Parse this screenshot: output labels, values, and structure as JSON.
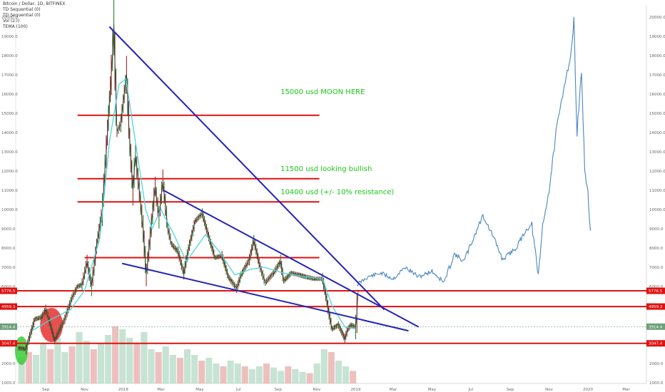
{
  "header": {
    "title": "Bitcoin / Dollar, 1D, BITFINEX",
    "indicators": [
      "TD Sequential (0)",
      "TD Sequential (0)",
      "Vol (20)",
      "TEMA (100)"
    ]
  },
  "chart_data": {
    "type": "line",
    "title": "Bitcoin / Dollar, 1D, BITFINEX",
    "xlabel": "",
    "ylabel": "",
    "ylim": [
      0,
      20500
    ],
    "y_ticks": [
      1000,
      2000,
      3000,
      4000,
      5000,
      6000,
      7000,
      8000,
      9000,
      10000,
      11000,
      12000,
      13000,
      14000,
      15000,
      16000,
      17000,
      18000,
      19000,
      20000
    ],
    "y_tick_labels": [
      "1000.0",
      "2000.0",
      "3000.0",
      "4000.0",
      "5000.0",
      "6000.0",
      "7000.0",
      "8000.0",
      "9000.0",
      "10000.0",
      "11000.0",
      "12000.0",
      "13000.0",
      "14000.0",
      "15000.0",
      "16000.0",
      "17000.0",
      "18000.0",
      "19000.0",
      "20000.0"
    ],
    "x_ticks": [
      {
        "label": "Sep",
        "date": "2017-09-01"
      },
      {
        "label": "Nov",
        "date": "2017-11-01"
      },
      {
        "label": "2018",
        "date": "2018-01-01"
      },
      {
        "label": "Mar",
        "date": "2018-03-01"
      },
      {
        "label": "May",
        "date": "2018-05-01"
      },
      {
        "label": "Jul",
        "date": "2018-07-01"
      },
      {
        "label": "Sep",
        "date": "2018-09-01"
      },
      {
        "label": "Nov",
        "date": "2018-11-01"
      },
      {
        "label": "2019",
        "date": "2019-01-01"
      },
      {
        "label": "Mar",
        "date": "2019-03-01"
      },
      {
        "label": "May",
        "date": "2019-05-01"
      },
      {
        "label": "Jul",
        "date": "2019-07-01"
      },
      {
        "label": "Sep",
        "date": "2019-09-01"
      },
      {
        "label": "Nov",
        "date": "2019-11-01"
      },
      {
        "label": "2020",
        "date": "2020-01-01"
      },
      {
        "label": "Mar",
        "date": "2020-03-01"
      }
    ],
    "xlim": [
      "2017-07-18",
      "2020-04-02"
    ],
    "grid": false,
    "series": [
      {
        "kind": "price",
        "color": "#333333",
        "points": [
          [
            "2017-07-20",
            2800
          ],
          [
            "2017-08-01",
            2750
          ],
          [
            "2017-08-05",
            3200
          ],
          [
            "2017-08-15",
            4300
          ],
          [
            "2017-08-25",
            4400
          ],
          [
            "2017-09-01",
            4800
          ],
          [
            "2017-09-05",
            4400
          ],
          [
            "2017-09-15",
            3200
          ],
          [
            "2017-09-22",
            3700
          ],
          [
            "2017-10-01",
            4300
          ],
          [
            "2017-10-12",
            5400
          ],
          [
            "2017-10-21",
            6000
          ],
          [
            "2017-10-28",
            6100
          ],
          [
            "2017-11-05",
            7300
          ],
          [
            "2017-11-12",
            6000
          ],
          [
            "2017-11-20",
            8100
          ],
          [
            "2017-11-29",
            10000
          ],
          [
            "2017-12-07",
            14000
          ],
          [
            "2017-12-10",
            15500
          ],
          [
            "2017-12-13",
            17000
          ],
          [
            "2017-12-17",
            19500
          ],
          [
            "2017-12-22",
            14000
          ],
          [
            "2017-12-28",
            14500
          ],
          [
            "2018-01-06",
            17000
          ],
          [
            "2018-01-11",
            13500
          ],
          [
            "2018-01-16",
            11000
          ],
          [
            "2018-01-20",
            12800
          ],
          [
            "2018-01-26",
            11000
          ],
          [
            "2018-02-01",
            9000
          ],
          [
            "2018-02-06",
            6600
          ],
          [
            "2018-02-12",
            8500
          ],
          [
            "2018-02-20",
            11200
          ],
          [
            "2018-02-26",
            9600
          ],
          [
            "2018-03-04",
            11500
          ],
          [
            "2018-03-12",
            9000
          ],
          [
            "2018-03-18",
            8200
          ],
          [
            "2018-03-28",
            7800
          ],
          [
            "2018-04-06",
            6700
          ],
          [
            "2018-04-13",
            7900
          ],
          [
            "2018-04-24",
            9400
          ],
          [
            "2018-05-05",
            9800
          ],
          [
            "2018-05-15",
            8600
          ],
          [
            "2018-05-25",
            7500
          ],
          [
            "2018-06-05",
            7600
          ],
          [
            "2018-06-15",
            6500
          ],
          [
            "2018-06-28",
            5900
          ],
          [
            "2018-07-05",
            6600
          ],
          [
            "2018-07-18",
            7400
          ],
          [
            "2018-07-25",
            8400
          ],
          [
            "2018-08-04",
            7000
          ],
          [
            "2018-08-12",
            6200
          ],
          [
            "2018-08-25",
            6700
          ],
          [
            "2018-09-05",
            7300
          ],
          [
            "2018-09-10",
            6300
          ],
          [
            "2018-09-22",
            6700
          ],
          [
            "2018-10-05",
            6600
          ],
          [
            "2018-10-15",
            6500
          ],
          [
            "2018-10-28",
            6400
          ],
          [
            "2018-11-10",
            6400
          ],
          [
            "2018-11-15",
            5600
          ],
          [
            "2018-11-20",
            4600
          ],
          [
            "2018-11-25",
            3800
          ],
          [
            "2018-12-05",
            4000
          ],
          [
            "2018-12-15",
            3300
          ],
          [
            "2018-12-20",
            3800
          ],
          [
            "2018-12-25",
            4000
          ],
          [
            "2019-01-01",
            3900
          ],
          [
            "2019-01-03",
            4600
          ],
          [
            "2019-01-05",
            5800
          ]
        ]
      },
      {
        "kind": "tema",
        "name": "TEMA (100)",
        "color": "#4fd4dc",
        "points": [
          [
            "2017-08-10",
            3700
          ],
          [
            "2017-09-10",
            4300
          ],
          [
            "2017-10-10",
            4800
          ],
          [
            "2017-11-01",
            5800
          ],
          [
            "2017-11-25",
            8500
          ],
          [
            "2017-12-10",
            13500
          ],
          [
            "2017-12-25",
            16500
          ],
          [
            "2018-01-05",
            16800
          ],
          [
            "2018-01-20",
            13500
          ],
          [
            "2018-02-05",
            10000
          ],
          [
            "2018-02-15",
            9000
          ],
          [
            "2018-03-01",
            10000
          ],
          [
            "2018-03-20",
            8800
          ],
          [
            "2018-04-10",
            7300
          ],
          [
            "2018-04-25",
            8000
          ],
          [
            "2018-05-10",
            8700
          ],
          [
            "2018-06-01",
            7800
          ],
          [
            "2018-06-25",
            6600
          ],
          [
            "2018-07-20",
            6900
          ],
          [
            "2018-08-10",
            7000
          ],
          [
            "2018-09-10",
            6700
          ],
          [
            "2018-10-15",
            6500
          ],
          [
            "2018-11-10",
            6400
          ],
          [
            "2018-11-25",
            5000
          ],
          [
            "2018-12-15",
            3900
          ],
          [
            "2019-01-01",
            3800
          ]
        ]
      },
      {
        "kind": "projection",
        "color": "#4a86c0",
        "points": [
          [
            "2019-01-03",
            6100
          ],
          [
            "2019-01-20",
            6500
          ],
          [
            "2019-02-10",
            6700
          ],
          [
            "2019-03-01",
            6400
          ],
          [
            "2019-03-20",
            7000
          ],
          [
            "2019-04-10",
            6500
          ],
          [
            "2019-05-01",
            6800
          ],
          [
            "2019-05-20",
            6200
          ],
          [
            "2019-06-05",
            7700
          ],
          [
            "2019-06-20",
            7300
          ],
          [
            "2019-07-05",
            8500
          ],
          [
            "2019-07-20",
            9700
          ],
          [
            "2019-08-05",
            8600
          ],
          [
            "2019-08-20",
            7400
          ],
          [
            "2019-09-10",
            8000
          ],
          [
            "2019-09-25",
            8900
          ],
          [
            "2019-10-05",
            9200
          ],
          [
            "2019-10-15",
            6500
          ],
          [
            "2019-10-22",
            9200
          ],
          [
            "2019-11-01",
            11000
          ],
          [
            "2019-11-12",
            14000
          ],
          [
            "2019-11-25",
            16500
          ],
          [
            "2019-12-05",
            18000
          ],
          [
            "2019-12-10",
            19700
          ],
          [
            "2019-12-15",
            14000
          ],
          [
            "2019-12-22",
            17200
          ],
          [
            "2019-12-27",
            12000
          ],
          [
            "2020-01-01",
            10800
          ],
          [
            "2020-01-05",
            8900
          ]
        ]
      }
    ],
    "volume_bars": [
      0.45,
      0.55,
      0.5,
      0.7,
      0.6,
      0.8,
      0.55,
      0.65,
      0.9,
      0.75,
      0.6,
      0.7,
      0.85,
      1.0,
      0.95,
      0.8,
      0.7,
      0.9,
      0.6,
      0.55,
      0.65,
      0.5,
      0.45,
      0.6,
      0.5,
      0.4,
      0.45,
      0.35,
      0.3,
      0.4,
      0.35,
      0.3,
      0.25,
      0.3,
      0.35,
      0.28,
      0.22,
      0.3,
      0.25,
      0.2,
      0.18,
      0.35,
      0.6,
      0.55,
      0.4,
      0.3,
      0.22
    ],
    "trendlines": [
      {
        "name": "descending-upper",
        "color": "#2222bb",
        "from": [
          "2017-12-10",
          19500
        ],
        "to": [
          "2019-02-15",
          4800
        ]
      },
      {
        "name": "descending-middle",
        "color": "#2222bb",
        "from": [
          "2018-03-05",
          11000
        ],
        "to": [
          "2019-04-10",
          3900
        ]
      },
      {
        "name": "descending-lower",
        "color": "#2222bb",
        "from": [
          "2017-12-30",
          7200
        ],
        "to": [
          "2019-03-25",
          3700
        ]
      }
    ],
    "levels": [
      {
        "value": 14900,
        "color": "#e01010",
        "from": "2017-10-21",
        "to": "2018-11-05",
        "axis_label": ""
      },
      {
        "value": 11600,
        "color": "#e01010",
        "from": "2017-10-21",
        "to": "2018-11-05",
        "axis_label": ""
      },
      {
        "value": 10400,
        "color": "#e01010",
        "from": "2017-10-21",
        "to": "2018-11-05",
        "axis_label": ""
      },
      {
        "value": 7500,
        "color": "#e01010",
        "from": "2017-11-01",
        "to": "2018-11-05",
        "axis_label": ""
      },
      {
        "value": 5776.5,
        "color": "#e01010",
        "from": "2017-07-18",
        "to": "2020-04-02",
        "axis_label": "5776.5"
      },
      {
        "value": 4959.3,
        "color": "#e01010",
        "from": "2017-07-18",
        "to": "2020-04-02",
        "axis_label": "4959.3"
      },
      {
        "value": 3047.4,
        "color": "#e01010",
        "from": "2017-07-18",
        "to": "2020-04-02",
        "axis_label": "3047.4"
      }
    ],
    "price_tag": {
      "value": 3914.4,
      "label": "3914.4",
      "color": "#6c9f78"
    },
    "annotations": [
      {
        "text": "15000 usd MOON HERE",
        "x": "2018-09-05",
        "y": 16000
      },
      {
        "text": "11500 usd looking bullish",
        "x": "2018-09-05",
        "y": 12000
      },
      {
        "text": "10400 usd (+/- 10% resistance)",
        "x": "2018-09-05",
        "y": 10800
      }
    ],
    "highlights": [
      {
        "name": "red-ellipse",
        "color": "#e63030",
        "center": [
          "2017-09-10",
          4000
        ]
      },
      {
        "name": "green-ellipse",
        "color": "#37cc37",
        "center": [
          "2017-07-28",
          2700
        ]
      }
    ]
  }
}
